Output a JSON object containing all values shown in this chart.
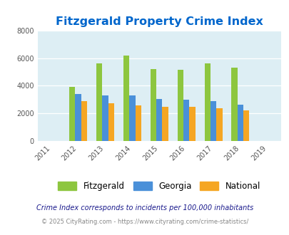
{
  "title": "Fitzgerald Property Crime Index",
  "all_years": [
    2011,
    2012,
    2013,
    2014,
    2015,
    2016,
    2017,
    2018,
    2019
  ],
  "data_years": [
    2012,
    2013,
    2014,
    2015,
    2016,
    2017,
    2018
  ],
  "fitzgerald": [
    3900,
    5600,
    6200,
    5200,
    5150,
    5600,
    5300
  ],
  "georgia": [
    3380,
    3320,
    3280,
    3050,
    3010,
    2900,
    2620
  ],
  "national": [
    2900,
    2720,
    2600,
    2490,
    2490,
    2380,
    2210
  ],
  "fitzgerald_color": "#8dc63f",
  "georgia_color": "#4a90d9",
  "national_color": "#f5a623",
  "bg_color": "#ddeef4",
  "ylim": [
    0,
    8000
  ],
  "yticks": [
    0,
    2000,
    4000,
    6000,
    8000
  ],
  "title_color": "#0066cc",
  "title_fontsize": 11.5,
  "legend_label_fitzgerald": "Fitzgerald",
  "legend_label_georgia": "Georgia",
  "legend_label_national": "National",
  "footnote1": "Crime Index corresponds to incidents per 100,000 inhabitants",
  "footnote2": "© 2025 CityRating.com - https://www.cityrating.com/crime-statistics/",
  "footnote1_color": "#1a1a8c",
  "footnote2_color": "#888888",
  "bar_width": 0.22
}
